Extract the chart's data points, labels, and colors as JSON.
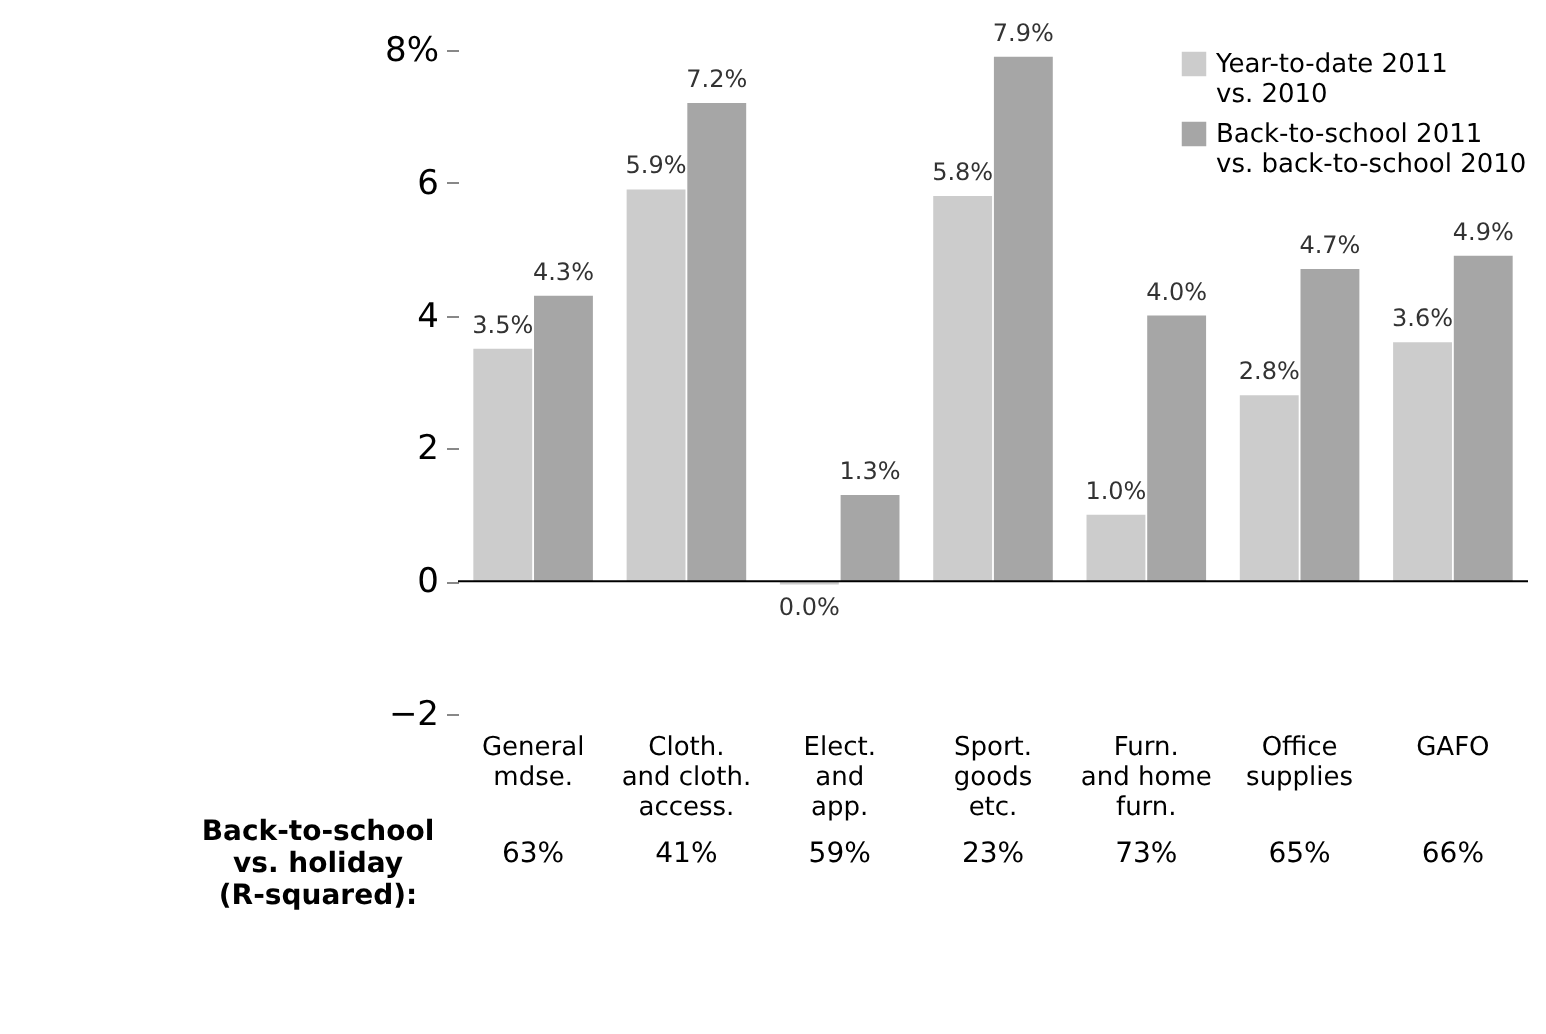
{
  "chart_data": {
    "type": "bar",
    "categories": [
      "General\nmdse.",
      "Cloth.\nand cloth.\naccess.",
      "Elect.\nand\napp.",
      "Sport.\ngoods\netc.",
      "Furn.\nand home\nfurn.",
      "Office\nsupplies",
      "GAFO"
    ],
    "series": [
      {
        "name": "Year-to-date 2011\nvs. 2010",
        "color": "#cccccc",
        "values": [
          3.5,
          5.9,
          -0.05,
          5.8,
          1.0,
          2.8,
          3.6
        ],
        "value_labels": [
          "3.5%",
          "5.9%",
          "0.0%",
          "5.8%",
          "1.0%",
          "2.8%",
          "3.6%"
        ]
      },
      {
        "name": "Back-to-school 2011\nvs. back-to-school 2010",
        "color": "#a6a6a6",
        "values": [
          4.3,
          7.2,
          1.3,
          7.9,
          4.0,
          4.7,
          4.9
        ],
        "value_labels": [
          "4.3%",
          "7.2%",
          "1.3%",
          "7.9%",
          "4.0%",
          "4.7%",
          "4.9%"
        ]
      }
    ],
    "ylim": [
      -2,
      8
    ],
    "yticks": [
      -2,
      0,
      2,
      4,
      6,
      {
        "value": 8,
        "label": "8%"
      }
    ],
    "ref_lines": [
      {
        "axis": "y",
        "value": 0
      }
    ],
    "annotations": [
      "Back-to-school\nvs. holiday\n(R-squared):",
      "63%",
      "41%",
      "59%",
      "23%",
      "73%",
      "65%",
      "66%"
    ],
    "legend": "top right",
    "grid": false
  }
}
